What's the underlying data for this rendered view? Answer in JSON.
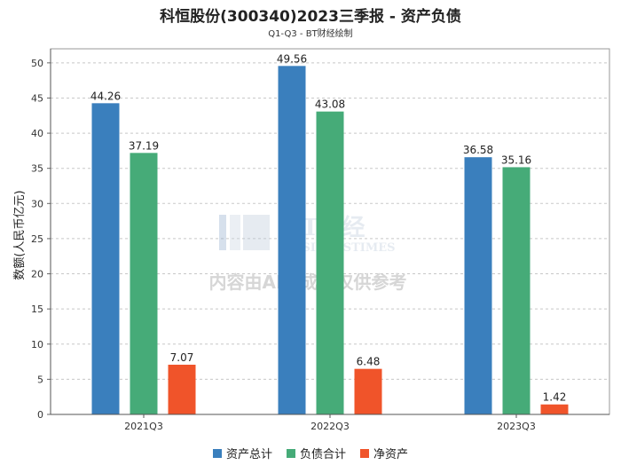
{
  "chart_data": {
    "type": "bar",
    "title": "科恒股份(300340)2023三季报 - 资产负债",
    "subtitle": "Q1-Q3 - BT财经绘制",
    "ylabel": "数额(人民币亿元)",
    "xlabel": "",
    "ylim": [
      0,
      52
    ],
    "yticks": [
      0,
      5,
      10,
      15,
      20,
      25,
      30,
      35,
      40,
      45,
      50
    ],
    "categories": [
      "2021Q3",
      "2022Q3",
      "2023Q3"
    ],
    "series": [
      {
        "name": "资产总计",
        "color": "#3a7fbd",
        "values": [
          44.26,
          49.56,
          36.58
        ],
        "labels": [
          "44.26",
          "49.56",
          "36.58"
        ]
      },
      {
        "name": "负债合计",
        "color": "#46ab78",
        "values": [
          37.19,
          43.08,
          35.16
        ],
        "labels": [
          "37.19",
          "43.08",
          "35.16"
        ]
      },
      {
        "name": "净资产",
        "color": "#f0542a",
        "values": [
          7.07,
          6.48,
          1.42
        ],
        "labels": [
          "7.07",
          "6.48",
          "1.42"
        ]
      }
    ],
    "grid": true,
    "legend": "bottom-center"
  },
  "watermark": {
    "brand": "BT财经",
    "brand_en": "BUSINESSTIMES",
    "note": "内容由AI生成，仅供参考"
  }
}
